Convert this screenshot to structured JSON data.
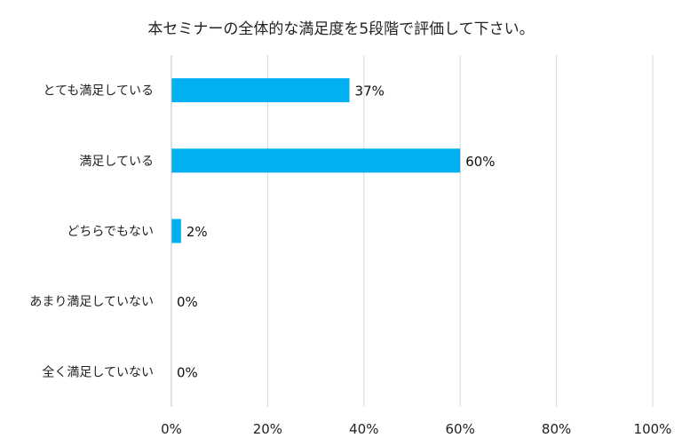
{
  "chart_data": {
    "type": "bar",
    "orientation": "horizontal",
    "title": "本セミナーの全体的な満足度を5段階で評価して下さい。",
    "categories": [
      "とても満足している",
      "満足している",
      "どちらでもない",
      "あまり満足していない",
      "全く満足していない"
    ],
    "values": [
      37,
      60,
      2,
      0,
      0
    ],
    "value_labels": [
      "37%",
      "60%",
      "2%",
      "0%",
      "0%"
    ],
    "xlim": [
      0,
      100
    ],
    "x_ticks": [
      "0%",
      "20%",
      "40%",
      "60%",
      "80%",
      "100%"
    ],
    "grid": "vertical",
    "legend": "none",
    "bar_color": "#00b0f0",
    "grid_color": "#d9d9d9"
  }
}
